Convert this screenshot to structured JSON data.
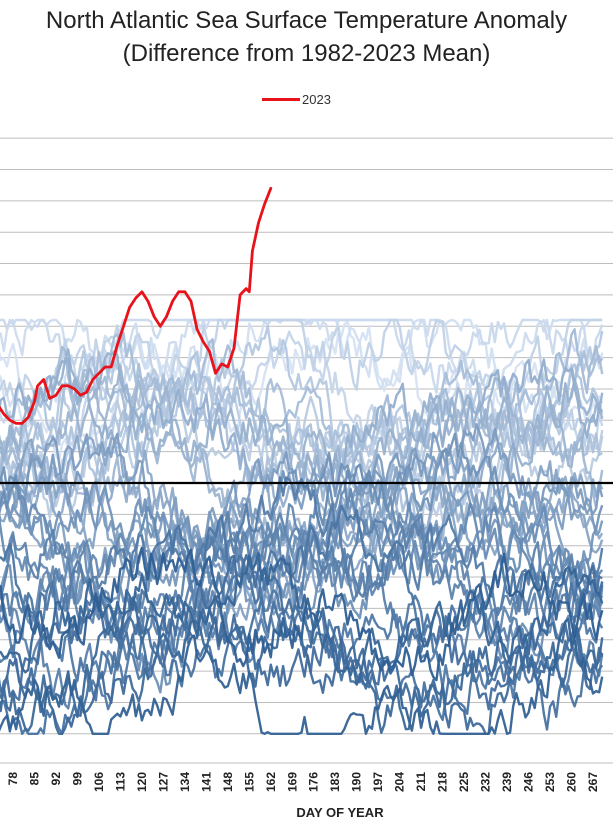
{
  "chart_data": {
    "type": "line",
    "title": "North Atlantic Sea Surface Temperature Anomaly",
    "subtitle": "(Difference from 1982-2023 Mean)",
    "xlabel": "DAY OF YEAR",
    "ylabel": "",
    "xlim": [
      73,
      270
    ],
    "ylim": [
      -0.8,
      1.2
    ],
    "grid": true,
    "legend_position": "top-center",
    "x_ticks": [
      78,
      85,
      92,
      99,
      106,
      113,
      120,
      127,
      134,
      141,
      148,
      155,
      162,
      169,
      176,
      183,
      190,
      197,
      204,
      211,
      218,
      225,
      232,
      239,
      246,
      253,
      260,
      267
    ],
    "x_tick_labels": [
      "78",
      "85",
      "92",
      "99",
      "106",
      "113",
      "120",
      "127",
      "134",
      "141",
      "148",
      "155",
      "162",
      "169",
      "176",
      "183",
      "190",
      "197",
      "204",
      "211",
      "218",
      "225",
      "232",
      "239",
      "246",
      "253",
      "260",
      "267"
    ],
    "zero_line": 0,
    "series": [
      {
        "name": "2023",
        "color": "#e8121a",
        "x": [
          73,
          75,
          77,
          79,
          81,
          83,
          85,
          86,
          88,
          90,
          92,
          94,
          96,
          98,
          100,
          102,
          104,
          106,
          108,
          110,
          112,
          114,
          116,
          118,
          120,
          122,
          124,
          126,
          128,
          130,
          132,
          134,
          136,
          138,
          140,
          142,
          144,
          146,
          148,
          150,
          152,
          154,
          155,
          156,
          158,
          160,
          162
        ],
        "values": [
          0.25,
          0.22,
          0.2,
          0.19,
          0.19,
          0.21,
          0.26,
          0.31,
          0.33,
          0.27,
          0.28,
          0.31,
          0.31,
          0.3,
          0.28,
          0.29,
          0.33,
          0.35,
          0.37,
          0.37,
          0.44,
          0.5,
          0.56,
          0.59,
          0.61,
          0.58,
          0.53,
          0.5,
          0.53,
          0.58,
          0.61,
          0.61,
          0.58,
          0.49,
          0.45,
          0.42,
          0.35,
          0.38,
          0.37,
          0.43,
          0.6,
          0.62,
          0.61,
          0.74,
          0.83,
          0.89,
          0.94
        ]
      }
    ],
    "background_years": {
      "count": 41,
      "color_range": [
        "#d6e2f3",
        "#2f5f93"
      ],
      "x_range": [
        73,
        270
      ],
      "value_range": [
        -0.8,
        0.52
      ]
    }
  }
}
